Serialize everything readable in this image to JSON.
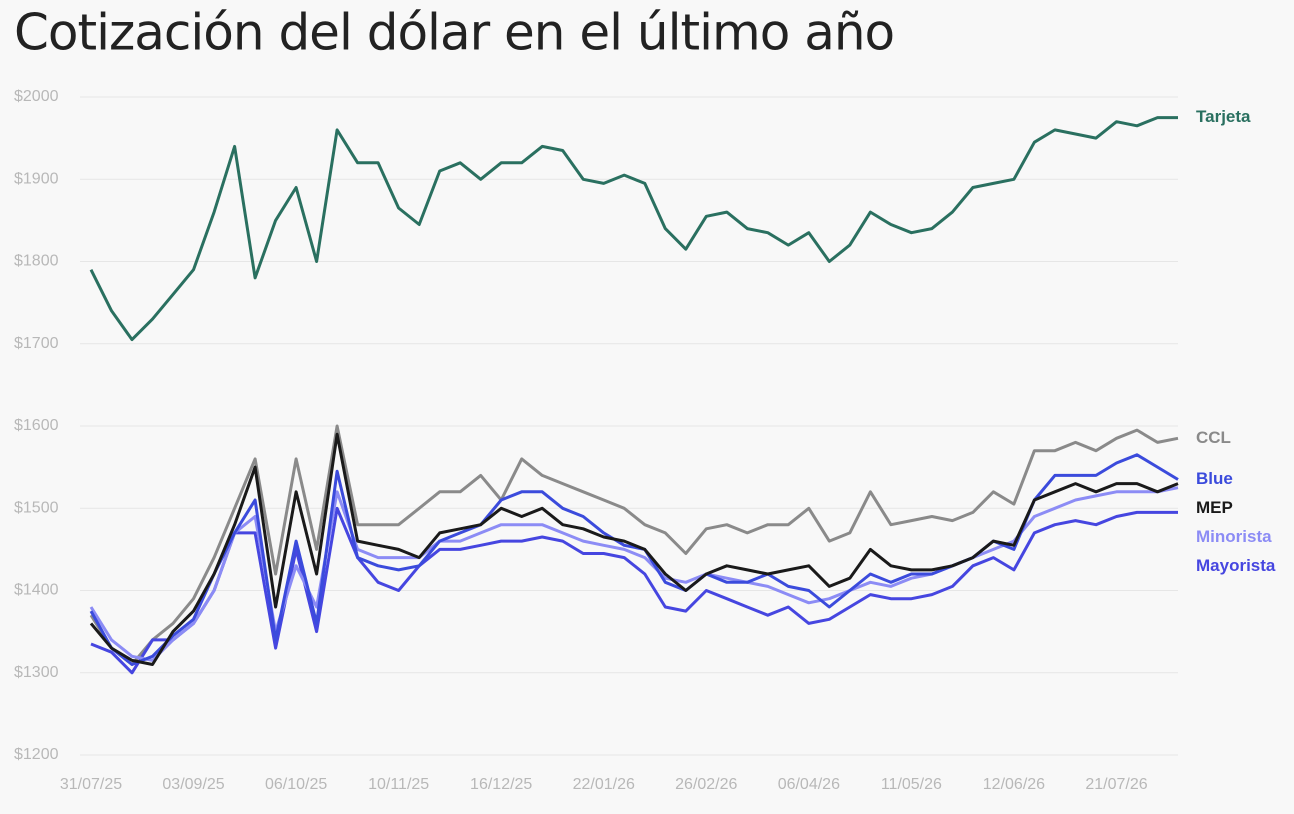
{
  "chart_data": {
    "type": "line",
    "title": "Cotización del dólar en el último año",
    "categories": [
      "31/07/25",
      null,
      null,
      null,
      null,
      "03/09/25",
      null,
      null,
      null,
      null,
      "06/10/25",
      null,
      null,
      null,
      null,
      "10/11/25",
      null,
      null,
      null,
      null,
      "16/12/25",
      null,
      null,
      null,
      null,
      "22/01/26",
      null,
      null,
      null,
      null,
      "26/02/26",
      null,
      null,
      null,
      null,
      "06/04/26",
      null,
      null,
      null,
      null,
      "11/05/26",
      null,
      null,
      null,
      null,
      "12/06/26",
      null,
      null,
      null,
      null,
      "21/07/26",
      null,
      null,
      null
    ],
    "ylim": [
      1200,
      2000
    ],
    "yticks": [
      {
        "value": 1200,
        "label": "$1200"
      },
      {
        "value": 1300,
        "label": "$1300"
      },
      {
        "value": 1400,
        "label": "$1400"
      },
      {
        "value": 1500,
        "label": "$1500"
      },
      {
        "value": 1600,
        "label": "$1600"
      },
      {
        "value": 1700,
        "label": "$1700"
      },
      {
        "value": 1800,
        "label": "$1800"
      },
      {
        "value": 1900,
        "label": "$1900"
      },
      {
        "value": 2000,
        "label": "$2000"
      }
    ],
    "grid": true,
    "series": [
      {
        "name": "CCL",
        "color": "#8a8a8a",
        "values": [
          1370,
          1330,
          1310,
          1340,
          1360,
          1390,
          1440,
          1500,
          1560,
          1420,
          1560,
          1450,
          1600,
          1480,
          1480,
          1480,
          1500,
          1520,
          1520,
          1540,
          1510,
          1560,
          1540,
          1530,
          1520,
          1510,
          1500,
          1480,
          1470,
          1445,
          1475,
          1480,
          1470,
          1480,
          1480,
          1500,
          1460,
          1470,
          1520,
          1480,
          1485,
          1490,
          1485,
          1495,
          1520,
          1505,
          1570,
          1570,
          1580,
          1570,
          1585,
          1595,
          1580,
          1585
        ]
      },
      {
        "name": "Mayorista",
        "color": "#4646e0",
        "values": [
          1335,
          1325,
          1300,
          1340,
          1340,
          1360,
          1400,
          1470,
          1470,
          1330,
          1450,
          1350,
          1500,
          1440,
          1410,
          1400,
          1430,
          1450,
          1450,
          1455,
          1460,
          1460,
          1465,
          1460,
          1445,
          1445,
          1440,
          1420,
          1380,
          1375,
          1400,
          1390,
          1380,
          1370,
          1380,
          1360,
          1365,
          1380,
          1395,
          1390,
          1390,
          1395,
          1405,
          1430,
          1440,
          1425,
          1470,
          1480,
          1485,
          1480,
          1490,
          1495,
          1495,
          1495
        ]
      },
      {
        "name": "Minorista",
        "color": "#8c8cf5",
        "values": [
          1380,
          1340,
          1320,
          1315,
          1340,
          1360,
          1400,
          1470,
          1490,
          1350,
          1430,
          1380,
          1520,
          1450,
          1440,
          1440,
          1440,
          1460,
          1460,
          1470,
          1480,
          1480,
          1480,
          1470,
          1460,
          1455,
          1450,
          1440,
          1415,
          1410,
          1420,
          1415,
          1410,
          1405,
          1395,
          1385,
          1390,
          1400,
          1410,
          1405,
          1415,
          1420,
          1430,
          1440,
          1450,
          1460,
          1490,
          1500,
          1510,
          1515,
          1520,
          1520,
          1520,
          1525
        ]
      },
      {
        "name": "Blue",
        "color": "#3b4bdc",
        "values": [
          1375,
          1330,
          1310,
          1320,
          1345,
          1365,
          1420,
          1470,
          1510,
          1340,
          1460,
          1360,
          1545,
          1440,
          1430,
          1425,
          1430,
          1460,
          1470,
          1480,
          1510,
          1520,
          1520,
          1500,
          1490,
          1470,
          1455,
          1450,
          1410,
          1400,
          1420,
          1410,
          1410,
          1420,
          1405,
          1400,
          1380,
          1400,
          1420,
          1410,
          1420,
          1420,
          1430,
          1440,
          1460,
          1450,
          1510,
          1540,
          1540,
          1540,
          1555,
          1565,
          1550,
          1535
        ]
      },
      {
        "name": "MEP",
        "color": "#1a1a1a",
        "values": [
          1360,
          1330,
          1315,
          1310,
          1350,
          1375,
          1420,
          1480,
          1550,
          1380,
          1520,
          1420,
          1590,
          1460,
          1455,
          1450,
          1440,
          1470,
          1475,
          1480,
          1500,
          1490,
          1500,
          1480,
          1475,
          1465,
          1460,
          1450,
          1420,
          1400,
          1420,
          1430,
          1425,
          1420,
          1425,
          1430,
          1405,
          1415,
          1450,
          1430,
          1425,
          1425,
          1430,
          1440,
          1460,
          1455,
          1510,
          1520,
          1530,
          1520,
          1530,
          1530,
          1520,
          1530
        ]
      },
      {
        "name": "Tarjeta",
        "color": "#2a7060",
        "values": [
          1790,
          1740,
          1705,
          1730,
          1760,
          1790,
          1860,
          1940,
          1780,
          1850,
          1890,
          1800,
          1960,
          1920,
          1920,
          1865,
          1845,
          1910,
          1920,
          1900,
          1920,
          1920,
          1940,
          1935,
          1900,
          1895,
          1905,
          1895,
          1840,
          1815,
          1855,
          1860,
          1840,
          1835,
          1820,
          1835,
          1800,
          1820,
          1860,
          1845,
          1835,
          1840,
          1860,
          1890,
          1895,
          1900,
          1945,
          1960,
          1955,
          1950,
          1970,
          1965,
          1975,
          1975
        ]
      }
    ]
  }
}
